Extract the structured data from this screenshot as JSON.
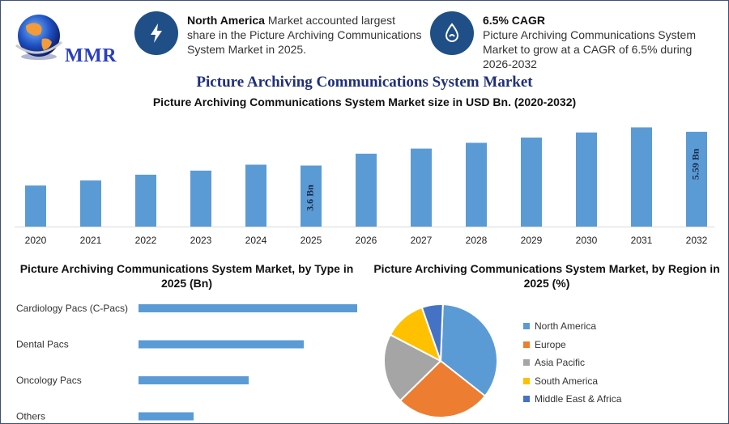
{
  "brand": {
    "logo_text": "MMR"
  },
  "info": [
    {
      "icon": "lightning-icon",
      "bold": "North America",
      "text": " Market accounted largest share in the Picture Archiving Communications System Market in 2025."
    },
    {
      "icon": "growth-drop-icon",
      "bold": "6.5% CAGR",
      "text": "Picture Archiving Communications System Market to grow at a CAGR of 6.5% during 2026-2032"
    }
  ],
  "title": "Picture Archiving Communications System Market",
  "colors": {
    "bar": "#5b9bd5",
    "title": "#1f2f7a",
    "icon_bg": "#1f4f86"
  },
  "chart_data": [
    {
      "type": "bar",
      "title": "Picture Archiving Communications System Market size in USD Bn. (2020-2032)",
      "categories": [
        "2020",
        "2021",
        "2022",
        "2023",
        "2024",
        "2025",
        "2026",
        "2027",
        "2028",
        "2029",
        "2030",
        "2031",
        "2032"
      ],
      "values": [
        2.42,
        2.72,
        3.06,
        3.3,
        3.65,
        3.6,
        4.3,
        4.6,
        4.94,
        5.25,
        5.55,
        5.85,
        5.59
      ],
      "ylim": [
        0,
        6.3
      ],
      "data_labels": [
        {
          "index": 5,
          "text": "3.6 Bn"
        },
        {
          "index": 12,
          "text": "5.59 Bn"
        }
      ]
    },
    {
      "type": "bar",
      "orientation": "horizontal",
      "title": "Picture Archiving Communications System Market, by Type in 2025 (Bn)",
      "categories": [
        "Cardiology Pacs (C-Pacs)",
        "Dental Pacs",
        "Oncology Pacs",
        "Others"
      ],
      "values": [
        1.35,
        1.02,
        0.68,
        0.34
      ],
      "xlim": [
        0,
        1.35
      ]
    },
    {
      "type": "pie",
      "title": "Picture Archiving Communications System Market, by Region in 2025 (%)",
      "labels": [
        "North America",
        "Europe",
        "Asia Pacific",
        "South America",
        "Middle East & Africa"
      ],
      "values": [
        35,
        27,
        20,
        12,
        6
      ],
      "colors": [
        "#5b9bd5",
        "#ed7d31",
        "#a5a5a5",
        "#ffc000",
        "#4472c4"
      ]
    }
  ]
}
